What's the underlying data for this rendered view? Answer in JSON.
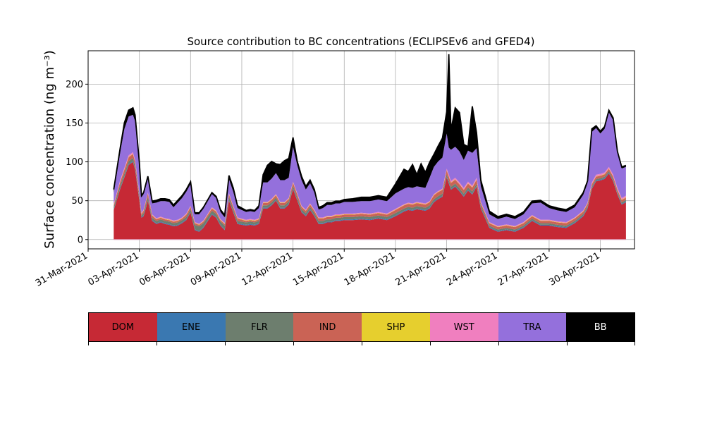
{
  "chart_data": {
    "type": "area",
    "title": "Source contribution to BC concentrations (ECLIPSEv6 and GFED4)",
    "ylabel": "Surface concentration (ng m⁻³)",
    "xlabel": "",
    "ylim": [
      -12,
      243
    ],
    "xlim": [
      "2021-03-31",
      "2021-05-02"
    ],
    "grid": true,
    "yticks": [
      0,
      50,
      100,
      150,
      200
    ],
    "xtick_labels": [
      "31-Mar-2021",
      "03-Apr-2021",
      "06-Apr-2021",
      "09-Apr-2021",
      "12-Apr-2021",
      "15-Apr-2021",
      "18-Apr-2021",
      "21-Apr-2021",
      "24-Apr-2021",
      "27-Apr-2021",
      "30-Apr-2021"
    ],
    "x": [
      "2021-04-01 12:00",
      "2021-04-01 21:00",
      "2021-04-02 03:00",
      "2021-04-02 09:00",
      "2021-04-02 15:00",
      "2021-04-02 18:00",
      "2021-04-03 00:00",
      "2021-04-03 03:00",
      "2021-04-03 06:00",
      "2021-04-03 12:00",
      "2021-04-03 18:00",
      "2021-04-04 00:00",
      "2021-04-04 06:00",
      "2021-04-04 12:00",
      "2021-04-04 18:00",
      "2021-04-05 00:00",
      "2021-04-05 06:00",
      "2021-04-05 12:00",
      "2021-04-05 18:00",
      "2021-04-06 00:00",
      "2021-04-06 06:00",
      "2021-04-06 12:00",
      "2021-04-06 18:00",
      "2021-04-07 06:00",
      "2021-04-07 12:00",
      "2021-04-07 18:00",
      "2021-04-08 00:00",
      "2021-04-08 06:00",
      "2021-04-08 12:00",
      "2021-04-08 18:00",
      "2021-04-09 06:00",
      "2021-04-09 12:00",
      "2021-04-09 18:00",
      "2021-04-10 00:00",
      "2021-04-10 06:00",
      "2021-04-10 12:00",
      "2021-04-10 18:00",
      "2021-04-11 00:00",
      "2021-04-11 06:00",
      "2021-04-11 12:00",
      "2021-04-11 18:00",
      "2021-04-12 00:00",
      "2021-04-12 06:00",
      "2021-04-12 12:00",
      "2021-04-12 18:00",
      "2021-04-13 00:00",
      "2021-04-13 06:00",
      "2021-04-13 12:00",
      "2021-04-13 18:00",
      "2021-04-14 00:00",
      "2021-04-14 06:00",
      "2021-04-14 12:00",
      "2021-04-14 18:00",
      "2021-04-15 00:00",
      "2021-04-15 12:00",
      "2021-04-16 00:00",
      "2021-04-16 12:00",
      "2021-04-17 00:00",
      "2021-04-17 12:00",
      "2021-04-18 00:00",
      "2021-04-18 12:00",
      "2021-04-18 18:00",
      "2021-04-19 00:00",
      "2021-04-19 06:00",
      "2021-04-19 12:00",
      "2021-04-19 18:00",
      "2021-04-20 00:00",
      "2021-04-20 06:00",
      "2021-04-20 12:00",
      "2021-04-20 18:00",
      "2021-04-21 00:00",
      "2021-04-21 03:00",
      "2021-04-21 06:00",
      "2021-04-21 12:00",
      "2021-04-21 18:00",
      "2021-04-22 00:00",
      "2021-04-22 06:00",
      "2021-04-22 12:00",
      "2021-04-22 18:00",
      "2021-04-23 00:00",
      "2021-04-23 12:00",
      "2021-04-24 00:00",
      "2021-04-24 12:00",
      "2021-04-25 00:00",
      "2021-04-25 12:00",
      "2021-04-26 00:00",
      "2021-04-26 12:00",
      "2021-04-27 00:00",
      "2021-04-27 12:00",
      "2021-04-28 00:00",
      "2021-04-28 12:00",
      "2021-04-29 00:00",
      "2021-04-29 06:00",
      "2021-04-29 12:00",
      "2021-04-29 18:00",
      "2021-04-30 00:00",
      "2021-04-30 06:00",
      "2021-04-30 12:00",
      "2021-04-30 18:00",
      "2021-05-01 00:00",
      "2021-05-01 06:00",
      "2021-05-01 12:00"
    ],
    "series": [
      {
        "name": "DOM",
        "color": "#c62935",
        "values": [
          38,
          65,
          80,
          96,
          100,
          90,
          50,
          28,
          30,
          50,
          24,
          20,
          22,
          20,
          19,
          17,
          18,
          21,
          25,
          35,
          12,
          10,
          15,
          32,
          28,
          18,
          12,
          50,
          35,
          20,
          18,
          19,
          18,
          20,
          40,
          40,
          44,
          50,
          40,
          40,
          45,
          65,
          50,
          35,
          30,
          38,
          30,
          20,
          20,
          22,
          22,
          24,
          24,
          25,
          25,
          26,
          25,
          27,
          25,
          30,
          36,
          38,
          37,
          39,
          38,
          37,
          40,
          48,
          52,
          55,
          80,
          72,
          64,
          68,
          62,
          55,
          63,
          58,
          68,
          40,
          15,
          10,
          12,
          10,
          15,
          24,
          18,
          18,
          16,
          15,
          21,
          30,
          40,
          65,
          75,
          76,
          78,
          85,
          75,
          58,
          45,
          48
        ]
      },
      {
        "name": "ENE",
        "color": "#3a78b1",
        "values": [
          1,
          1,
          1,
          1,
          1,
          1,
          1,
          1,
          1,
          1,
          1,
          1,
          1,
          1,
          1,
          1,
          1,
          1,
          1,
          1,
          1,
          1,
          1,
          1,
          1,
          1,
          1,
          1,
          1,
          1,
          1,
          1,
          1,
          1,
          1,
          1,
          1,
          1,
          1,
          1,
          1,
          1,
          1,
          1,
          1,
          1,
          1,
          1,
          1,
          1,
          1,
          1,
          1,
          1,
          1,
          1,
          1,
          1,
          1,
          1,
          1,
          1,
          1,
          1,
          1,
          1,
          1,
          1,
          1,
          1,
          1,
          1,
          1,
          1,
          1,
          1,
          1,
          1,
          1,
          1,
          1,
          1,
          1,
          1,
          1,
          1,
          1,
          1,
          1,
          1,
          1,
          1,
          1,
          1,
          1,
          1,
          1,
          1,
          1,
          1,
          1,
          1
        ]
      },
      {
        "name": "FLR",
        "color": "#6d7e6e",
        "values": [
          3,
          4,
          4,
          4,
          4,
          4,
          3,
          2,
          3,
          4,
          3,
          3,
          3,
          3,
          3,
          3,
          3,
          3,
          3,
          3,
          6,
          6,
          5,
          4,
          4,
          4,
          5,
          4,
          3,
          3,
          3,
          3,
          3,
          3,
          3,
          3,
          3,
          3,
          3,
          3,
          3,
          3,
          3,
          3,
          3,
          3,
          3,
          3,
          3,
          3,
          3,
          3,
          3,
          3,
          3,
          3,
          3,
          3,
          3,
          3,
          3,
          3,
          3,
          3,
          3,
          3,
          3,
          3,
          3,
          3,
          3,
          3,
          3,
          3,
          3,
          3,
          3,
          3,
          3,
          3,
          2,
          2,
          2,
          2,
          2,
          2,
          2,
          2,
          2,
          2,
          2,
          2,
          2,
          2,
          2,
          2,
          2,
          2,
          2,
          2,
          2,
          2
        ]
      },
      {
        "name": "IND",
        "color": "#ca6355",
        "values": [
          2,
          4,
          5,
          5,
          5,
          5,
          4,
          2,
          3,
          4,
          3,
          2,
          2,
          2,
          2,
          2,
          2,
          2,
          3,
          3,
          2,
          2,
          2,
          3,
          3,
          2,
          2,
          3,
          3,
          3,
          2,
          2,
          2,
          2,
          3,
          3,
          3,
          3,
          3,
          3,
          3,
          4,
          4,
          3,
          3,
          3,
          3,
          3,
          3,
          3,
          3,
          3,
          3,
          3,
          3,
          3,
          3,
          3,
          3,
          4,
          4,
          4,
          4,
          4,
          4,
          4,
          4,
          5,
          5,
          5,
          5,
          5,
          5,
          5,
          5,
          5,
          5,
          5,
          5,
          3,
          3,
          3,
          3,
          3,
          3,
          3,
          3,
          3,
          3,
          3,
          3,
          3,
          3,
          3,
          3,
          3,
          3,
          3,
          3,
          3,
          3,
          3
        ]
      },
      {
        "name": "SHP",
        "color": "#e6cf2e",
        "values": [
          0.5,
          0.5,
          0.5,
          0.5,
          0.5,
          0.5,
          0.5,
          0.5,
          0.5,
          0.5,
          0.5,
          0.5,
          0.5,
          0.5,
          0.5,
          0.5,
          0.5,
          0.5,
          0.5,
          0.5,
          0.5,
          0.5,
          0.5,
          0.5,
          0.5,
          0.5,
          0.5,
          0.5,
          0.5,
          0.5,
          0.5,
          0.5,
          0.5,
          0.5,
          0.5,
          0.5,
          0.5,
          0.5,
          0.5,
          0.5,
          0.5,
          0.5,
          0.5,
          0.5,
          0.5,
          0.5,
          0.5,
          0.5,
          0.5,
          0.5,
          0.5,
          0.5,
          0.5,
          0.5,
          0.5,
          0.5,
          0.5,
          0.5,
          0.5,
          0.5,
          0.5,
          0.5,
          0.5,
          0.5,
          0.5,
          0.5,
          0.5,
          0.5,
          0.5,
          0.5,
          0.5,
          0.5,
          0.5,
          0.5,
          0.5,
          0.5,
          0.5,
          0.5,
          0.5,
          0.5,
          0.5,
          0.5,
          0.5,
          0.5,
          0.5,
          0.5,
          0.5,
          0.5,
          0.5,
          0.5,
          0.5,
          0.5,
          0.5,
          0.5,
          0.5,
          0.5,
          0.5,
          0.5,
          0.5,
          0.5,
          0.5,
          0.5
        ]
      },
      {
        "name": "WST",
        "color": "#f07fbf",
        "values": [
          1,
          2,
          2,
          2,
          2,
          2,
          1,
          1,
          1,
          1,
          1,
          1,
          1,
          1,
          1,
          1,
          1,
          1,
          1,
          1,
          1,
          1,
          1,
          1,
          1,
          1,
          1,
          1,
          1,
          1,
          1,
          1,
          1,
          1,
          1,
          1,
          1,
          1,
          1,
          1,
          1,
          1,
          1,
          1,
          1,
          1,
          1,
          1,
          1,
          1,
          1,
          1,
          1,
          1,
          1,
          1,
          1,
          1,
          1,
          1,
          1,
          1,
          1,
          1,
          1,
          1,
          1,
          1,
          1,
          1,
          2,
          2,
          2,
          2,
          2,
          2,
          2,
          2,
          2,
          1,
          1,
          1,
          1,
          1,
          1,
          1,
          1,
          1,
          1,
          1,
          1,
          1,
          1,
          2,
          2,
          2,
          2,
          2,
          2,
          2,
          2,
          2
        ]
      },
      {
        "name": "TRA",
        "color": "#9470dc",
        "values": [
          15,
          35,
          50,
          50,
          48,
          50,
          35,
          20,
          20,
          19,
          14,
          20,
          20,
          22,
          22,
          17,
          22,
          25,
          28,
          28,
          10,
          12,
          15,
          17,
          16,
          9,
          7,
          18,
          18,
          12,
          10,
          10,
          10,
          13,
          25,
          25,
          26,
          27,
          28,
          28,
          26,
          45,
          36,
          33,
          26,
          26,
          22,
          10,
          12,
          14,
          14,
          14,
          14,
          15,
          15,
          15,
          16,
          16,
          16,
          20,
          20,
          20,
          20,
          20,
          20,
          20,
          30,
          35,
          38,
          40,
          45,
          35,
          40,
          40,
          40,
          36,
          40,
          42,
          38,
          20,
          10,
          9,
          10,
          9,
          10,
          15,
          22,
          15,
          14,
          13,
          13,
          20,
          25,
          65,
          60,
          52,
          56,
          70,
          70,
          45,
          38,
          37
        ]
      },
      {
        "name": "BB",
        "color": "#000000",
        "values": [
          4,
          6,
          8,
          8,
          9,
          8,
          5,
          2,
          2,
          2,
          3,
          3,
          3,
          3,
          3,
          3,
          3,
          3,
          3,
          3,
          2,
          2,
          2,
          2,
          2,
          3,
          3,
          5,
          5,
          3,
          2,
          2,
          2,
          3,
          10,
          22,
          22,
          12,
          20,
          25,
          25,
          12,
          5,
          5,
          4,
          4,
          4,
          3,
          3,
          3,
          3,
          3,
          3,
          3,
          4,
          5,
          5,
          5,
          5,
          12,
          25,
          20,
          30,
          15,
          30,
          20,
          20,
          16,
          20,
          25,
          28,
          120,
          25,
          50,
          50,
          20,
          5,
          60,
          20,
          8,
          4,
          3,
          3,
          3,
          3,
          3,
          3,
          3,
          3,
          3,
          3,
          3,
          3,
          4,
          3,
          3,
          3,
          3,
          3,
          2,
          2,
          2
        ]
      }
    ]
  }
}
